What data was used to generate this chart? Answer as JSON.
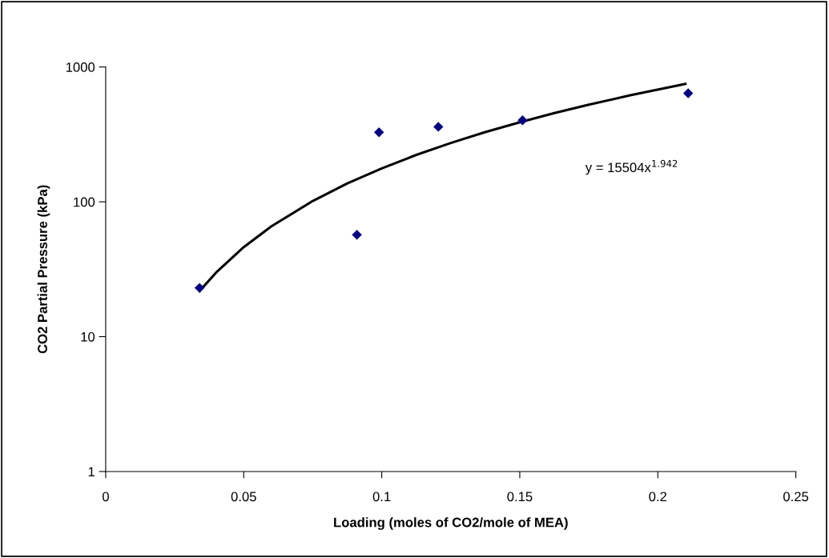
{
  "chart_data": {
    "type": "scatter",
    "xlabel": "Loading (moles of CO2/mole of MEA)",
    "ylabel": "CO2 Partial Pressure (kPa)",
    "series": [
      {
        "color": "#000080",
        "marker": "diamond",
        "x": [
          0.034,
          0.091,
          0.099,
          0.1205,
          0.151,
          0.211
        ],
        "values": [
          23,
          57,
          328,
          360,
          402,
          638
        ]
      },
      {
        "type": "line",
        "color": "#000000",
        "marker": "none",
        "line_style": "solid",
        "x": [
          0.034,
          0.04,
          0.05,
          0.06,
          0.075,
          0.0875,
          0.1,
          0.1125,
          0.125,
          0.1375,
          0.15,
          0.1625,
          0.175,
          0.19,
          0.21
        ],
        "values": [
          21.8,
          29.9,
          46.1,
          65.7,
          101.4,
          136.7,
          177,
          222.6,
          273,
          329,
          389,
          455,
          525,
          616,
          749
        ]
      }
    ],
    "log": "y",
    "xlim": [
      0,
      0.25
    ],
    "xticks": [
      0,
      0.05,
      0.1,
      0.15,
      0.2,
      0.25
    ],
    "ylim": [
      1,
      1000
    ],
    "yticks": [
      1,
      10,
      100,
      1000
    ],
    "grid": false,
    "legend": false,
    "annotations": [
      "y = 15504x$^{1.942}$"
    ]
  }
}
